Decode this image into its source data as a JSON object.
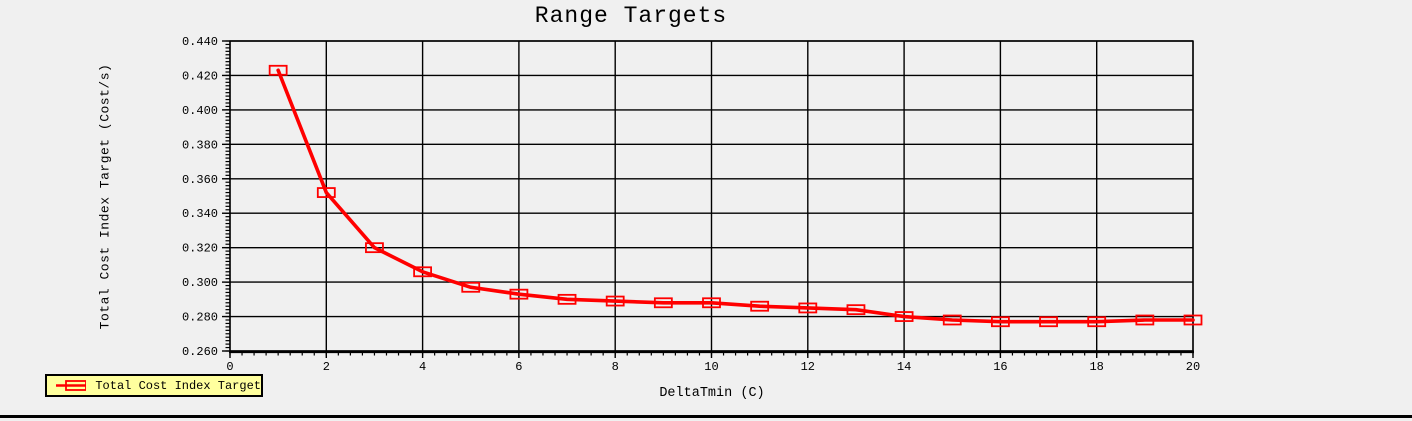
{
  "window": {
    "background": "#f0f0f0"
  },
  "colors": {
    "axis": "#000000",
    "grid": "#000000",
    "text": "#000000",
    "series": "#ff0000",
    "legend_fill": "#ffff9e",
    "legend_border": "#000000",
    "bottom_rule": "#000000"
  },
  "chart_data": {
    "type": "line",
    "title": "Range Targets",
    "xlabel": "DeltaTmin (C)",
    "ylabel": "Total Cost Index Target (Cost/s)",
    "xlim": [
      0,
      20
    ],
    "ylim": [
      0.26,
      0.44
    ],
    "x_major_ticks": [
      0,
      2,
      4,
      6,
      8,
      10,
      12,
      14,
      16,
      18,
      20
    ],
    "x_minor_step": 0.25,
    "y_major_ticks": [
      0.26,
      0.28,
      0.3,
      0.32,
      0.34,
      0.36,
      0.38,
      0.4,
      0.42,
      0.44
    ],
    "y_minor_step": 0.002,
    "y_tick_decimals": 3,
    "grid": true,
    "legend_position": "bottom-left",
    "series": [
      {
        "name": "Total Cost Index Target",
        "color": "#ff0000",
        "marker": "open-rectangle",
        "x": [
          1,
          2,
          3,
          4,
          5,
          6,
          7,
          8,
          9,
          10,
          11,
          12,
          13,
          14,
          15,
          16,
          17,
          18,
          19,
          20
        ],
        "y": [
          0.423,
          0.352,
          0.32,
          0.306,
          0.297,
          0.293,
          0.29,
          0.289,
          0.288,
          0.288,
          0.286,
          0.285,
          0.284,
          0.28,
          0.278,
          0.277,
          0.277,
          0.277,
          0.278,
          0.278
        ]
      }
    ]
  }
}
